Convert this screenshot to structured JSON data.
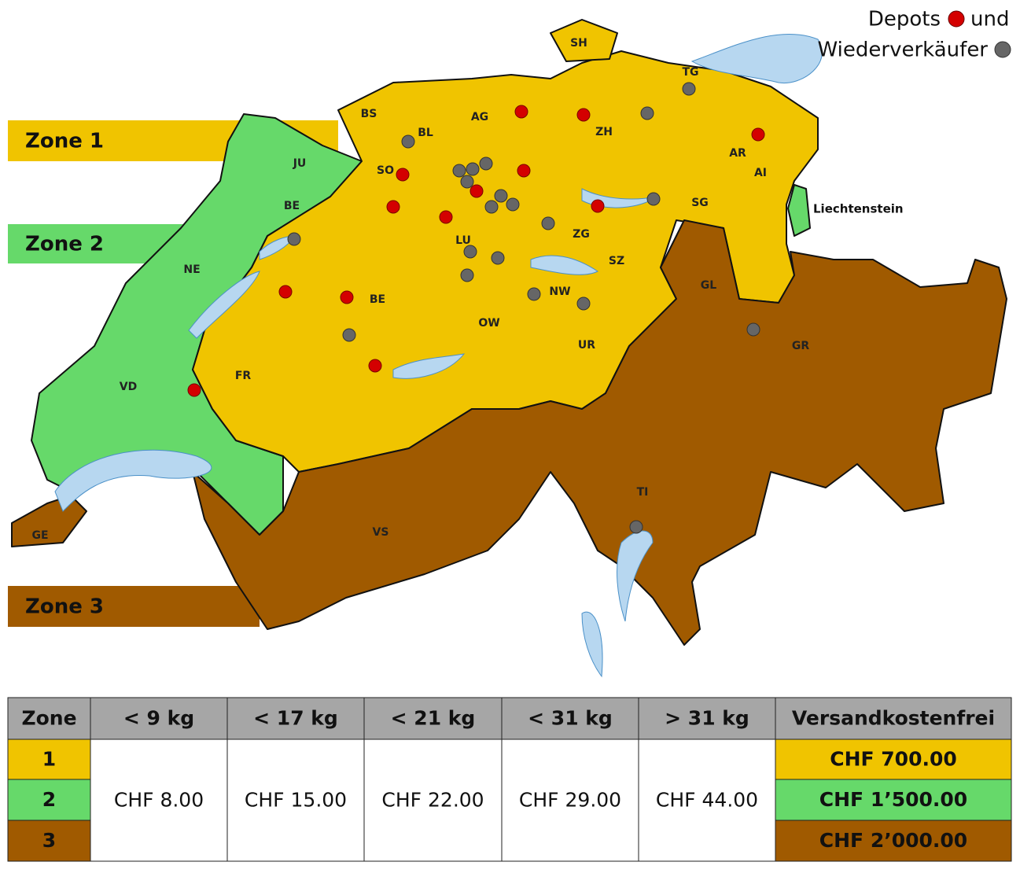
{
  "legend": {
    "depots": "Depots",
    "and": "und",
    "resellers": "Wiederverkäufer"
  },
  "zones": [
    "Zone 1",
    "Zone 2",
    "Zone 3"
  ],
  "map_labels": {
    "cantons": [
      "SH",
      "TG",
      "BS",
      "AG",
      "BL",
      "ZH",
      "JU",
      "AR",
      "SO",
      "AI",
      "BE",
      "SG",
      "ZG",
      "LU",
      "SZ",
      "NE",
      "GL",
      "NW",
      "BE",
      "OW",
      "UR",
      "GR",
      "VD",
      "FR",
      "TI",
      "VS",
      "GE"
    ],
    "liechtenstein": "Liechtenstein"
  },
  "table": {
    "header": [
      "Zone",
      "< 9 kg",
      "< 17 kg",
      "< 21 kg",
      "< 31 kg",
      "> 31 kg",
      "Versandkostenfrei"
    ],
    "zones": [
      "1",
      "2",
      "3"
    ],
    "prices": [
      "CHF 8.00",
      "CHF 15.00",
      "CHF 22.00",
      "CHF 29.00",
      "CHF 44.00"
    ],
    "free_from": [
      "CHF 700.00",
      "CHF 1’500.00",
      "CHF 2’000.00"
    ]
  }
}
